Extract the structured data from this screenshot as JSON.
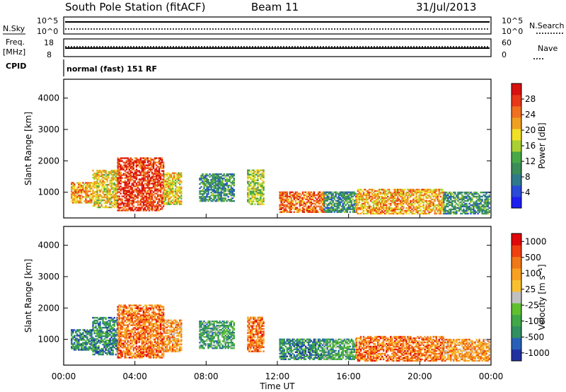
{
  "header": {
    "station": "South Pole Station (fitACF)",
    "beam": "Beam 11",
    "date": "31/Jul/2013"
  },
  "strip_labels": {
    "nsky": "N.Sky",
    "nsearch": "N.Search",
    "freq_line1": "Freq.",
    "freq_line2": "[MHz]",
    "cpid": "CPID",
    "nave": "Nave",
    "noise_top_left": "10^5",
    "noise_bottom_left": "10^0",
    "noise_top_right": "10^5",
    "noise_bottom_right": "10^0",
    "freq_top": "18",
    "freq_bottom": "8",
    "nave_top": "60",
    "nave_bottom": "0",
    "cpid_text": "normal (fast) 151 RF"
  },
  "chart_data": [
    {
      "type": "heatmap",
      "name": "power-panel",
      "ylabel": "Slant Range [km]",
      "xlabel": "",
      "ylim": [
        180,
        4600
      ],
      "yticks": [
        1000,
        2000,
        3000,
        4000
      ],
      "xticks": [
        "00:00",
        "04:00",
        "08:00",
        "12:00",
        "16:00",
        "20:00",
        "00:00"
      ],
      "colorbar": {
        "label": "Power [dB]",
        "ticks": [
          "4",
          "8",
          "12",
          "16",
          "20",
          "24",
          "28"
        ],
        "colors": [
          "#1e1ef0",
          "#2a4ad8",
          "#2e7a8c",
          "#3c8c58",
          "#48a848",
          "#a8d030",
          "#f0e028",
          "#f0a020",
          "#f07020",
          "#e83818",
          "#d81010"
        ]
      },
      "regions": [
        {
          "t": [
            0.4,
            1.6
          ],
          "r": [
            650,
            1300
          ],
          "level": 7
        },
        {
          "t": [
            1.6,
            3.0
          ],
          "r": [
            500,
            1700
          ],
          "level": 6
        },
        {
          "t": [
            3.0,
            5.6
          ],
          "r": [
            400,
            2100
          ],
          "level": 9
        },
        {
          "t": [
            5.6,
            6.6
          ],
          "r": [
            600,
            1600
          ],
          "level": 6
        },
        {
          "t": [
            7.6,
            9.6
          ],
          "r": [
            700,
            1600
          ],
          "level": 3
        },
        {
          "t": [
            10.3,
            11.2
          ],
          "r": [
            600,
            1700
          ],
          "level": 5
        },
        {
          "t": [
            12.1,
            14.6
          ],
          "r": [
            350,
            1000
          ],
          "level": 8
        },
        {
          "t": [
            14.6,
            16.4
          ],
          "r": [
            350,
            1000
          ],
          "level": 3
        },
        {
          "t": [
            16.4,
            21.3
          ],
          "r": [
            300,
            1100
          ],
          "level": 7
        },
        {
          "t": [
            21.3,
            23.9
          ],
          "r": [
            300,
            1000
          ],
          "level": 3
        }
      ]
    },
    {
      "type": "heatmap",
      "name": "velocity-panel",
      "ylabel": "Slant Range [km]",
      "xlabel": "Time UT",
      "ylim": [
        180,
        4600
      ],
      "yticks": [
        1000,
        2000,
        3000,
        4000
      ],
      "xticks": [
        "00:00",
        "04:00",
        "08:00",
        "12:00",
        "16:00",
        "20:00",
        "00:00"
      ],
      "colorbar": {
        "label": "Velocity [m s⁻¹]",
        "ticks": [
          "1000",
          "500",
          "100",
          "25",
          "-25",
          "-100",
          "-500",
          "-1000"
        ],
        "colors": [
          "#2030a0",
          "#2860b8",
          "#309060",
          "#40a848",
          "#60c030",
          "#c0c0c0",
          "#f8c030",
          "#f8a020",
          "#f07818",
          "#f04010",
          "#e00808"
        ]
      },
      "regions": [
        {
          "t": [
            0.4,
            1.6
          ],
          "r": [
            650,
            1300
          ],
          "level": 2
        },
        {
          "t": [
            1.6,
            3.0
          ],
          "r": [
            500,
            1700
          ],
          "level": 2
        },
        {
          "t": [
            3.0,
            5.6
          ],
          "r": [
            400,
            2100
          ],
          "level": 8
        },
        {
          "t": [
            5.6,
            6.6
          ],
          "r": [
            600,
            1600
          ],
          "level": 7
        },
        {
          "t": [
            7.6,
            9.6
          ],
          "r": [
            700,
            1600
          ],
          "level": 3
        },
        {
          "t": [
            10.3,
            11.2
          ],
          "r": [
            600,
            1700
          ],
          "level": 8
        },
        {
          "t": [
            12.1,
            14.6
          ],
          "r": [
            350,
            1000
          ],
          "level": 2
        },
        {
          "t": [
            14.6,
            16.4
          ],
          "r": [
            350,
            1000
          ],
          "level": 3
        },
        {
          "t": [
            16.4,
            21.3
          ],
          "r": [
            300,
            1100
          ],
          "level": 8
        },
        {
          "t": [
            21.3,
            23.9
          ],
          "r": [
            300,
            1000
          ],
          "level": 7
        }
      ]
    }
  ],
  "time_axis_label": "Time UT"
}
